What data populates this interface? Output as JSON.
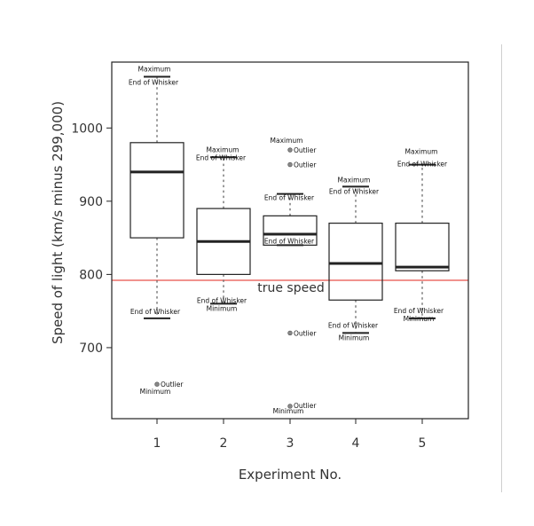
{
  "chart_data": {
    "type": "box",
    "xlabel": "Experiment No.",
    "ylabel": "Speed of light (km/s minus 299,000)",
    "ylim": [
      603,
      1090
    ],
    "yticks": [
      700,
      800,
      900,
      1000
    ],
    "categories": [
      "1",
      "2",
      "3",
      "4",
      "5"
    ],
    "reference_line": {
      "value": 792,
      "label": "true speed",
      "color": "#e8504a"
    },
    "boxes": [
      {
        "category": "1",
        "whisker_low": 740,
        "q1": 850,
        "median": 940,
        "q3": 980,
        "whisker_high": 1070,
        "outliers": [
          650
        ]
      },
      {
        "category": "2",
        "whisker_low": 760,
        "q1": 800,
        "median": 845,
        "q3": 890,
        "whisker_high": 960,
        "outliers": []
      },
      {
        "category": "3",
        "whisker_low": 840,
        "q1": 840,
        "median": 855,
        "q3": 880,
        "whisker_high": 910,
        "outliers": [
          620,
          720,
          950,
          970
        ]
      },
      {
        "category": "4",
        "whisker_low": 720,
        "q1": 765,
        "median": 815,
        "q3": 870,
        "whisker_high": 920,
        "outliers": []
      },
      {
        "category": "5",
        "whisker_low": 740,
        "q1": 805,
        "median": 810,
        "q3": 870,
        "whisker_high": 950,
        "outliers": []
      }
    ],
    "annotations": [
      {
        "box": "1",
        "value": 1070,
        "text": "Maximum",
        "anchor": "middle",
        "dx": -3,
        "dy": -6
      },
      {
        "box": "1",
        "value": 1070,
        "text": "End of Whisker",
        "anchor": "middle",
        "dx": -4,
        "dy": 9
      },
      {
        "box": "1",
        "value": 740,
        "text": "End of Whisker",
        "anchor": "middle",
        "dx": -2,
        "dy": -5
      },
      {
        "box": "1",
        "value": 650,
        "text": "Outlier",
        "anchor": "start",
        "dx": 4,
        "dy": 3
      },
      {
        "box": "1",
        "value": 650,
        "text": "Minimum",
        "anchor": "middle",
        "dx": -2,
        "dy": 11
      },
      {
        "box": "2",
        "value": 960,
        "text": "Maximum",
        "anchor": "middle",
        "dx": -1,
        "dy": -6
      },
      {
        "box": "2",
        "value": 960,
        "text": "End of Whisker",
        "anchor": "middle",
        "dx": -3,
        "dy": 3
      },
      {
        "box": "2",
        "value": 760,
        "text": "End of Whisker",
        "anchor": "middle",
        "dx": -2,
        "dy": -1
      },
      {
        "box": "2",
        "value": 760,
        "text": "Minimum",
        "anchor": "middle",
        "dx": -2,
        "dy": 8
      },
      {
        "box": "3",
        "value": 970,
        "text": "Maximum",
        "anchor": "middle",
        "dx": -4,
        "dy": -8
      },
      {
        "box": "3",
        "value": 970,
        "text": "Outlier",
        "anchor": "start",
        "dx": 4,
        "dy": 3
      },
      {
        "box": "3",
        "value": 950,
        "text": "Outlier",
        "anchor": "start",
        "dx": 4,
        "dy": 3
      },
      {
        "box": "3",
        "value": 910,
        "text": "End of Whisker",
        "anchor": "middle",
        "dx": -1,
        "dy": 7
      },
      {
        "box": "3",
        "value": 840,
        "text": "End of Whisker",
        "anchor": "middle",
        "dx": -1,
        "dy": -2
      },
      {
        "box": "3",
        "value": 720,
        "text": "Outlier",
        "anchor": "start",
        "dx": 4,
        "dy": 3
      },
      {
        "box": "3",
        "value": 620,
        "text": "Outlier",
        "anchor": "start",
        "dx": 4,
        "dy": 2
      },
      {
        "box": "3",
        "value": 620,
        "text": "Minimum",
        "anchor": "middle",
        "dx": -2,
        "dy": 8
      },
      {
        "box": "4",
        "value": 920,
        "text": "Maximum",
        "anchor": "middle",
        "dx": -2,
        "dy": -5
      },
      {
        "box": "4",
        "value": 920,
        "text": "End of Whisker",
        "anchor": "middle",
        "dx": -2,
        "dy": 8
      },
      {
        "box": "4",
        "value": 720,
        "text": "End of Whisker",
        "anchor": "middle",
        "dx": -3,
        "dy": -6
      },
      {
        "box": "4",
        "value": 720,
        "text": "Minimum",
        "anchor": "middle",
        "dx": -2,
        "dy": 8
      },
      {
        "box": "5",
        "value": 950,
        "text": "Maximum",
        "anchor": "middle",
        "dx": -1,
        "dy": -12
      },
      {
        "box": "5",
        "value": 950,
        "text": "End of Whisker",
        "anchor": "middle",
        "dx": 0,
        "dy": 2
      },
      {
        "box": "5",
        "value": 740,
        "text": "End of Whisker",
        "anchor": "middle",
        "dx": -4,
        "dy": -6
      },
      {
        "box": "5",
        "value": 740,
        "text": "Minimum",
        "anchor": "middle",
        "dx": -4,
        "dy": 3
      }
    ]
  }
}
